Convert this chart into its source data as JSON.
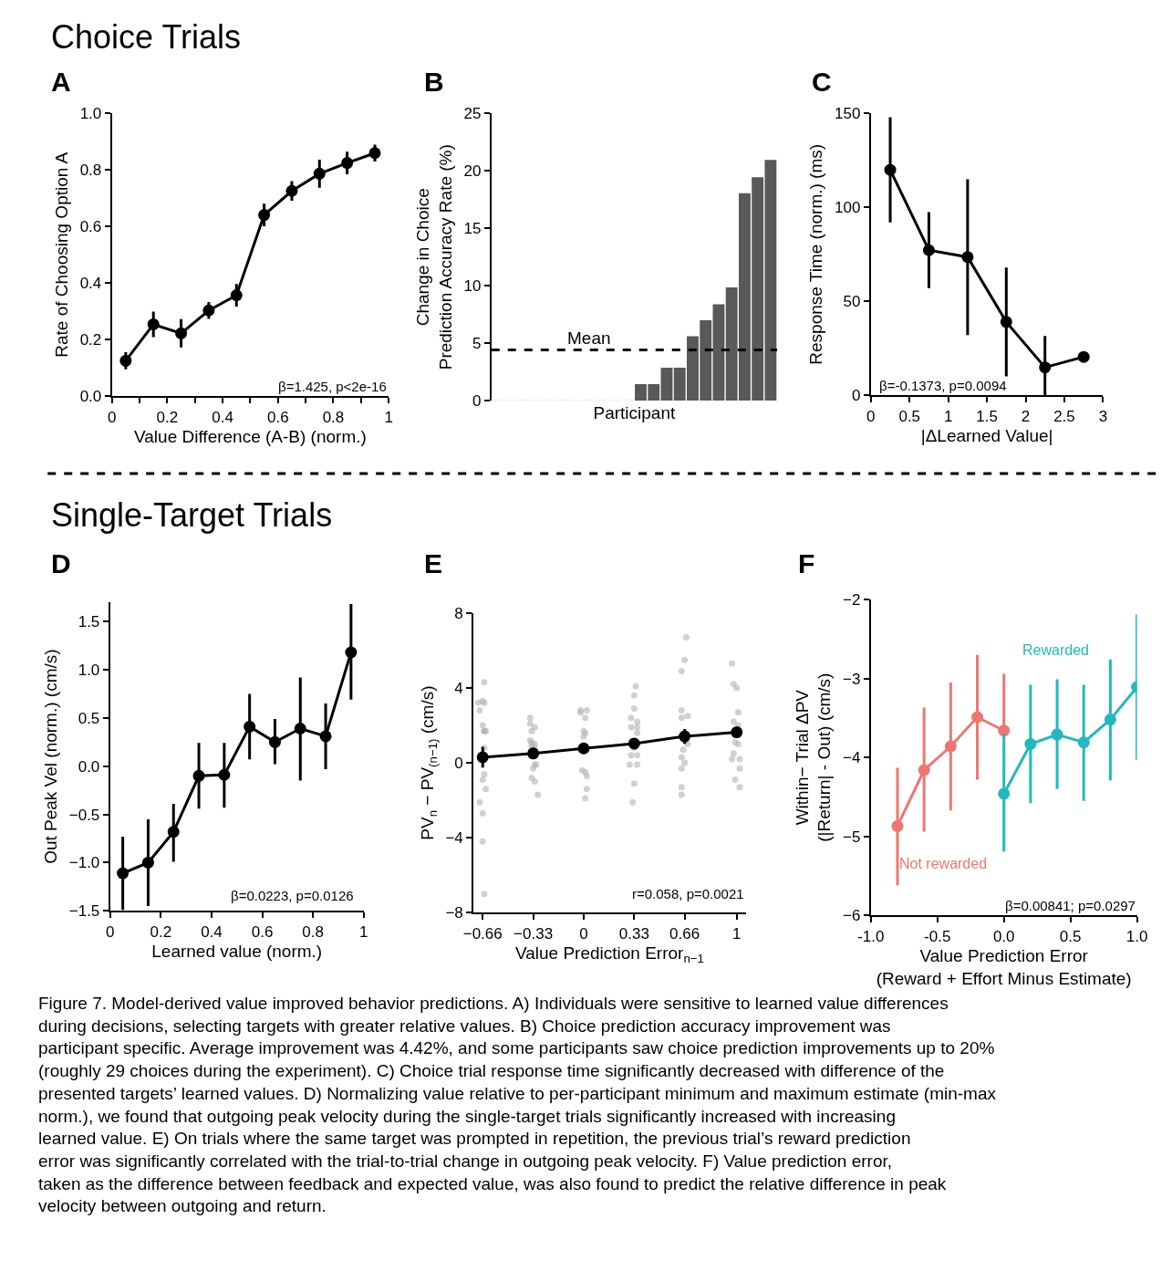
{
  "chart_data": [
    {
      "type": "line",
      "title": "A",
      "xlabel": "Value Difference (A-B) (norm.)",
      "ylabel": "Rate of Choosing Option A",
      "x": [
        0.05,
        0.15,
        0.25,
        0.35,
        0.45,
        0.55,
        0.65,
        0.75,
        0.85,
        0.95
      ],
      "series": [
        {
          "color": "#000000",
          "values": [
            0.125,
            0.254,
            0.222,
            0.303,
            0.357,
            0.641,
            0.726,
            0.787,
            0.825,
            0.86
          ],
          "errors": [
            0.03,
            0.045,
            0.05,
            0.03,
            0.04,
            0.04,
            0.035,
            0.05,
            0.04,
            0.03
          ]
        }
      ],
      "xlim": [
        0,
        1
      ],
      "xticks": [
        0,
        {
          "value": 0.1,
          "label": null
        },
        0.2,
        {
          "value": 0.3,
          "label": null
        },
        0.4,
        {
          "value": 0.5,
          "label": null
        },
        0.6,
        {
          "value": 0.7,
          "label": null
        },
        0.8,
        {
          "value": 0.9,
          "label": null
        },
        1
      ],
      "ylim": [
        0,
        1
      ],
      "yticks": [
        {
          "value": 0,
          "label": "0.0"
        },
        0.2,
        0.4,
        0.6,
        0.8,
        {
          "value": 1,
          "label": "1.0"
        }
      ],
      "marker": "circle",
      "line_style": "solid",
      "annotations": [
        "β=1.425, p<2e-16",
        "Choice Trials"
      ]
    },
    {
      "type": "bar",
      "title": "B",
      "xlabel": "Participant",
      "ylabel": "Change in Choice\nPrediction Accuracy Rate (%)",
      "categories": [
        null,
        null,
        null,
        null,
        null,
        null,
        null,
        null,
        null,
        null,
        null,
        null,
        null,
        null,
        null,
        null,
        null,
        null,
        null,
        null,
        null,
        null
      ],
      "series": [
        {
          "color": "#595959",
          "colors": [
            "#e3e3e3",
            "#e3e3e3",
            "#e3e3e3",
            "#e3e3e3",
            "#e3e3e3",
            "#e3e3e3",
            "#e3e3e3",
            "#e3e3e3",
            "#e3e3e3",
            "#e3e3e3",
            "#e3e3e3",
            "#595959",
            "#595959",
            "#595959",
            "#595959",
            "#595959",
            "#595959",
            "#595959",
            "#595959",
            "#595959",
            "#595959",
            "#595959"
          ],
          "values": [
            0,
            0,
            0,
            0,
            0,
            0,
            0,
            0,
            0,
            0,
            0,
            1.38,
            1.38,
            2.81,
            2.81,
            5.55,
            6.93,
            8.33,
            9.79,
            18.0,
            19.4,
            20.9
          ]
        }
      ],
      "ylim": [
        0,
        25
      ],
      "yticks": [
        0,
        5,
        10,
        15,
        20,
        25
      ],
      "tick_labels": "y",
      "ref_lines": [
        {
          "axis": "y",
          "value": 4.42,
          "label": "Mean",
          "color": "#000000",
          "line_style": "dashed"
        }
      ]
    },
    {
      "type": "line",
      "title": "C",
      "xlabel": "|ΔLearned Value|",
      "ylabel": "Response Time (norm.) (ms)",
      "x": [
        0.25,
        0.75,
        1.25,
        1.75,
        2.25,
        2.75
      ],
      "series": [
        {
          "color": "#000000",
          "values": [
            120,
            77.2,
            73.6,
            39,
            14.8,
            20.4
          ],
          "errors": [
            [
              92,
              148
            ],
            [
              57,
              97.5
            ],
            [
              32,
              115
            ],
            [
              10,
              68
            ],
            [
              0,
              31.5
            ],
            null
          ]
        }
      ],
      "xlim": [
        0,
        3
      ],
      "xticks": [
        0,
        0.5,
        1,
        1.5,
        2,
        2.5,
        3
      ],
      "ylim": [
        0,
        150
      ],
      "yticks": [
        0,
        50,
        100,
        150
      ],
      "marker": "circle",
      "line_style": "solid",
      "annotations": [
        "β=-0.1373, p=0.0094"
      ]
    },
    {
      "type": "line",
      "title": "D",
      "xlabel": "Learned value (norm.)",
      "ylabel": "Out Peak Vel (norm.) (cm/s)",
      "x": [
        0.05,
        0.15,
        0.25,
        0.35,
        0.45,
        0.55,
        0.65,
        0.75,
        0.85,
        0.95
      ],
      "series": [
        {
          "color": "#000000",
          "values": [
            -1.11,
            -1.0,
            -0.68,
            -0.1,
            -0.09,
            0.41,
            0.25,
            0.39,
            0.31,
            1.18
          ],
          "errors": [
            [
              -1.49,
              -0.73
            ],
            [
              -1.45,
              -0.55
            ],
            [
              -0.99,
              -0.39
            ],
            [
              -0.44,
              0.24
            ],
            [
              -0.43,
              0.24
            ],
            [
              0.07,
              0.75
            ],
            [
              0.02,
              0.49
            ],
            [
              -0.15,
              0.92
            ],
            [
              -0.03,
              0.65
            ],
            [
              0.69,
              1.68
            ]
          ]
        }
      ],
      "xlim": [
        0,
        1
      ],
      "xticks": [
        0,
        0.2,
        0.4,
        0.6,
        0.8,
        1
      ],
      "ylim": [
        -1.5,
        1.7
      ],
      "yticks": [
        {
          "value": -1.5,
          "label": "−1.5"
        },
        {
          "value": -1,
          "label": "−1.0"
        },
        {
          "value": -0.5,
          "label": "−0.5"
        },
        {
          "value": 0,
          "label": "0.0"
        },
        0.5,
        {
          "value": 1,
          "label": "1.0"
        },
        1.5
      ],
      "marker": "circle",
      "line_style": "solid",
      "annotations": [
        "β=0.0223, p=0.0126",
        "Single-Target Trials"
      ]
    },
    {
      "type": "scatter",
      "title": "E",
      "xlabel": "Value Prediction Error$_{n−1}$",
      "ylabel": "PV$_{n}$ − PV$_{(n−1)}$ (cm/s)",
      "series": [
        {
          "type": "scatter",
          "color": "#b3b3b3",
          "x": [
            -0.65,
            -0.66,
            -0.65,
            -0.69,
            -0.68,
            -0.66,
            -0.65,
            -0.64,
            -0.65,
            -0.65,
            -0.65,
            -0.66,
            -0.64,
            -0.68,
            -0.66,
            -0.66,
            -0.65,
            -0.35,
            -0.35,
            -0.32,
            -0.34,
            -0.35,
            -0.34,
            -0.32,
            -0.34,
            -0.32,
            -0.34,
            -0.31,
            -0.32,
            -0.31,
            -0.33,
            -0.34,
            -0.32,
            -0.3,
            -0.02,
            0.02,
            -0.02,
            0.01,
            0.0,
            0.01,
            0.0,
            -0.01,
            0.01,
            0.02,
            0.02,
            0.01,
            0.34,
            0.33,
            0.33,
            0.31,
            0.35,
            0.31,
            0.35,
            0.35,
            0.33,
            0.31,
            0.35,
            0.3,
            0.35,
            0.33,
            0.32,
            0.67,
            0.66,
            0.64,
            0.64,
            0.68,
            0.64,
            0.68,
            0.65,
            0.64,
            0.66,
            0.64,
            0.64,
            0.64,
            0.97,
            0.98,
            1.0,
            1.01,
            0.98,
            1.01,
            0.99,
            1.01,
            0.98,
            1.02,
            0.97,
            1.02,
            0.99,
            1.02
          ],
          "values": [
            4.3,
            3.3,
            3.2,
            3.2,
            2.8,
            2.0,
            1.7,
            1.7,
            1.7,
            0.8,
            -0.6,
            -0.9,
            -1.4,
            -2.1,
            -2.7,
            -4.2,
            -7.0,
            2.4,
            2.1,
            1.9,
            1.7,
            1.2,
            1.1,
            1.0,
            0.9,
            0.8,
            0.7,
            0.5,
            -0.1,
            -0.1,
            -0.3,
            -0.8,
            -1.0,
            -1.7,
            2.8,
            2.8,
            2.7,
            2.4,
            1.7,
            1.6,
            1.4,
            -0.4,
            -0.5,
            -0.7,
            -1.4,
            -1.9,
            4.1,
            3.6,
            2.9,
            2.4,
            2.2,
            1.9,
            1.9,
            1.6,
            0.8,
            0.4,
            0.4,
            -0.1,
            -0.1,
            -1.1,
            -2.1,
            6.7,
            5.5,
            4.9,
            2.8,
            2.5,
            2.4,
            1.0,
            0.7,
            0.3,
            0.0,
            -0.3,
            -1.3,
            -1.7,
            5.3,
            4.2,
            4.0,
            2.7,
            2.2,
            2.0,
            1.1,
            1.0,
            0.5,
            0.2,
            0.2,
            -0.3,
            -0.9,
            -1.3
          ]
        },
        {
          "type": "line",
          "color": "#000000",
          "x": [
            -0.66,
            -0.33,
            0,
            0.33,
            0.66,
            1
          ],
          "values": [
            0.3,
            0.5,
            0.77,
            1.03,
            1.41,
            1.63
          ],
          "errors": [
            0.55,
            null,
            null,
            null,
            0.4,
            null
          ]
        }
      ],
      "xlim": [
        -0.72,
        1.06
      ],
      "xticks": [
        {
          "value": -0.66,
          "label": "−0.66"
        },
        {
          "value": -0.33,
          "label": "−0.33"
        },
        0,
        0.33,
        0.66,
        1
      ],
      "ylim": [
        -8,
        8
      ],
      "yticks": [
        {
          "value": -8,
          "label": "−8"
        },
        {
          "value": -4,
          "label": "−4"
        },
        0,
        4,
        8
      ],
      "marker": "circle",
      "line_style": "solid",
      "annotations": [
        "r=0.058, p=0.0021"
      ]
    },
    {
      "type": "line",
      "title": "F",
      "xlabel": "Value Prediction Error\n(Reward + Effort Minus Estimate)",
      "ylabel": "Within− Trial ΔPV\n(|Return| - Out) (cm/s)",
      "series": [
        {
          "name": "Not rewarded",
          "color": "#ef7670",
          "x": [
            -0.8,
            -0.6,
            -0.4,
            -0.2,
            0.0
          ],
          "values": [
            -4.87,
            -4.16,
            -3.86,
            -3.49,
            -3.66
          ],
          "errors": [
            [
              -5.62,
              -4.13
            ],
            [
              -4.94,
              -3.37
            ],
            [
              -4.67,
              -3.05
            ],
            [
              -4.28,
              -2.7
            ],
            [
              -3.66,
              -2.94
            ]
          ]
        },
        {
          "name": "Rewarded",
          "color": "#22b8be",
          "x": [
            0.0,
            0.2,
            0.4,
            0.6,
            0.8,
            1.0
          ],
          "values": [
            -4.46,
            -3.83,
            -3.71,
            -3.81,
            -3.52,
            -3.11
          ],
          "errors": [
            [
              -5.19,
              -3.7
            ],
            [
              -4.58,
              -3.08
            ],
            [
              -4.4,
              -3.01
            ],
            [
              -4.55,
              -3.08
            ],
            [
              -4.29,
              -2.76
            ],
            [
              -4.03,
              -2.19
            ]
          ]
        }
      ],
      "xlim": [
        -1,
        1
      ],
      "xticks": [
        {
          "value": -1,
          "label": "-1.0"
        },
        {
          "value": -0.5,
          "label": "-0.5"
        },
        {
          "value": 0,
          "label": "0.0"
        },
        0.5,
        {
          "value": 1,
          "label": "1.0"
        }
      ],
      "ylim": [
        -6,
        -2
      ],
      "yticks": [
        {
          "value": -6,
          "label": "−6"
        },
        {
          "value": -5,
          "label": "−5"
        },
        {
          "value": -4,
          "label": "−4"
        },
        {
          "value": -3,
          "label": "−3"
        },
        {
          "value": -2,
          "label": "−2"
        }
      ],
      "marker": "circle",
      "line_style": "solid",
      "annotations": [
        "β=0.00841; p=0.0297",
        "Figure 7. Model-derived value improved behavior predictions. A) Individuals were sensitive to learned value differences during decisions, selecting targets with greater relative values. B) Choice prediction accuracy improvement was participant specific. Average improvement was 4.42%, and some participants saw choice prediction improvements up to 20% (roughly 29 choices during the experiment). C) Choice trial response time significantly decreased with difference of the presented targets’ learned values. D) Normalizing value relative to per-participant minimum and maximum estimate (min-max norm.), we found that outgoing peak velocity during the single-target trials significantly increased with increasing learned value. E) On trials where the same target was prompted in repetition, the previous trial’s reward prediction error was significantly correlated with the trial-to-trial change in outgoing peak velocity. F) Value prediction error, taken as the difference between feedback and expected value, was also found to predict the relative difference in peak velocity between outgoing and return."
      ]
    }
  ]
}
